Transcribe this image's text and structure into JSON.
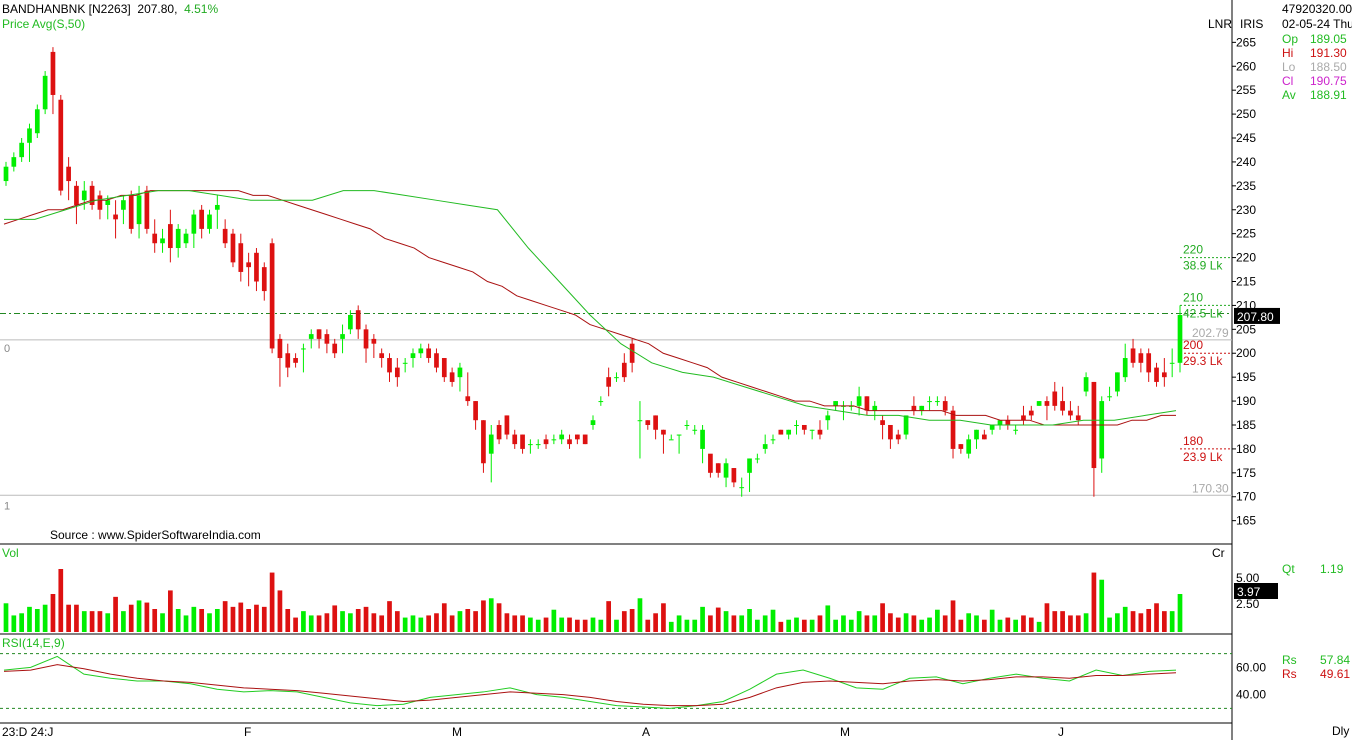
{
  "header": {
    "symbol": "BANDHANBNK [N2263]",
    "last": "207.80,",
    "change": "4.51%",
    "overlay": "Price  Avg(S,50)",
    "lnr": "LNR",
    "iris": "IRIS"
  },
  "info_panel": {
    "volume": "47920320.00",
    "date": "02-05-24  Thu",
    "open_label": "Op",
    "open": "189.05",
    "high_label": "Hi",
    "high": "191.30",
    "low_label": "Lo",
    "low": "188.50",
    "close_label": "Cl",
    "close": "190.75",
    "avg_label": "Av",
    "avg": "188.91"
  },
  "source": "Source : www.SpiderSoftwareIndia.com",
  "price_marker": "207.80",
  "left_markers": {
    "top": "0",
    "bottom": "1"
  },
  "annotations": {
    "level_202": "202.79",
    "level_170": "170.30",
    "t220": "220",
    "v220": "38.9 Lk",
    "t210": "210",
    "v210": "42.5 Lk",
    "t200": "200",
    "v200": "29.3 Lk",
    "t180": "180",
    "v180": "23.9 Lk"
  },
  "volume_panel": {
    "title": "Vol",
    "unit": "Cr",
    "qt_label": "Qt",
    "qt": "1.19",
    "marker": "3.97",
    "ticks": [
      "5.00",
      "2.50"
    ]
  },
  "rsi_panel": {
    "title": "RSI(14,E,9)",
    "rs1_label": "Rs",
    "rs1": "57.84",
    "rs2_label": "Rs",
    "rs2": "49.61",
    "ticks": [
      "60.00",
      "40.00"
    ]
  },
  "x_axis": {
    "labels": [
      "23:D 24:J",
      "F",
      "M",
      "A",
      "M",
      "J"
    ],
    "period": "Dly"
  },
  "colors": {
    "up": "#00ee00",
    "down": "#dd1111",
    "sma": "#aa1111",
    "vol_sma": "#22bb22",
    "rsi": "#22cc22",
    "rsi_signal": "#aa1111"
  },
  "chart_data": {
    "type": "candlestick",
    "y_range": [
      162,
      268
    ],
    "y_ticks": [
      165,
      170,
      175,
      180,
      185,
      190,
      195,
      200,
      205,
      210,
      215,
      220,
      225,
      230,
      235,
      240,
      245,
      250,
      255,
      260,
      265
    ],
    "candles": [
      [
        236,
        240,
        235,
        239
      ],
      [
        239,
        242,
        238,
        241
      ],
      [
        241,
        245,
        240,
        244
      ],
      [
        244,
        248,
        240,
        247
      ],
      [
        246,
        252,
        245,
        251
      ],
      [
        251,
        259,
        250,
        258
      ],
      [
        263,
        264,
        250,
        254
      ],
      [
        253,
        254,
        233,
        234
      ],
      [
        239,
        241,
        232,
        236
      ],
      [
        235,
        236,
        227,
        231
      ],
      [
        232,
        236,
        230,
        234
      ],
      [
        235,
        236,
        230,
        231
      ],
      [
        233,
        234,
        228,
        230
      ],
      [
        231,
        233,
        228,
        232
      ],
      [
        229,
        232,
        224,
        228
      ],
      [
        230,
        233,
        227,
        232
      ],
      [
        233,
        234,
        225,
        226
      ],
      [
        227,
        235,
        224,
        233
      ],
      [
        234,
        235,
        225,
        226
      ],
      [
        225,
        228,
        221,
        223
      ],
      [
        223,
        226,
        221,
        224
      ],
      [
        227,
        230,
        219,
        222
      ],
      [
        222,
        227,
        220,
        226
      ],
      [
        223,
        226,
        222,
        225
      ],
      [
        225,
        230,
        222,
        229
      ],
      [
        230,
        231,
        224,
        226
      ],
      [
        226,
        230,
        225,
        229
      ],
      [
        230,
        233,
        226,
        231
      ],
      [
        226,
        228,
        222,
        223
      ],
      [
        225,
        226,
        218,
        219
      ],
      [
        223,
        225,
        215,
        217
      ],
      [
        219,
        221,
        214,
        218
      ],
      [
        221,
        222,
        213,
        215
      ],
      [
        218,
        219,
        211,
        213
      ],
      [
        223,
        224,
        200,
        201
      ],
      [
        203,
        204,
        193,
        199
      ],
      [
        200,
        202,
        195,
        197
      ],
      [
        199,
        200,
        197,
        198
      ],
      [
        201,
        202,
        196,
        201
      ],
      [
        203,
        205,
        201,
        204
      ],
      [
        205,
        205,
        201,
        203
      ],
      [
        204,
        205,
        200,
        202
      ],
      [
        202,
        203,
        199,
        200
      ],
      [
        203,
        206,
        200,
        204
      ],
      [
        205,
        209,
        204,
        208
      ],
      [
        209,
        210,
        203,
        205
      ],
      [
        205,
        206,
        198,
        201
      ],
      [
        203,
        204,
        199,
        202
      ],
      [
        200,
        201,
        197,
        199
      ],
      [
        199,
        200,
        194,
        196
      ],
      [
        197,
        199,
        193,
        195
      ],
      [
        198,
        199,
        196,
        198
      ],
      [
        199,
        201,
        197,
        200
      ],
      [
        200,
        202,
        199,
        201
      ],
      [
        201,
        202,
        198,
        199
      ],
      [
        200,
        201,
        196,
        197
      ],
      [
        199,
        199,
        194,
        195
      ],
      [
        196,
        197,
        193,
        194
      ],
      [
        195,
        198,
        192,
        197
      ],
      [
        191,
        196,
        189,
        190
      ],
      [
        190,
        190,
        184,
        186
      ],
      [
        186,
        186,
        175,
        177
      ],
      [
        179,
        185,
        173,
        183
      ],
      [
        185,
        186,
        181,
        182
      ],
      [
        187,
        187,
        182,
        183
      ],
      [
        183,
        184,
        180,
        181
      ],
      [
        183,
        183,
        179,
        180
      ],
      [
        181,
        182,
        179,
        181
      ],
      [
        181,
        182,
        180,
        181
      ],
      [
        182,
        183,
        180,
        181
      ],
      [
        182,
        183,
        181,
        182
      ],
      [
        182,
        184,
        181,
        183
      ],
      [
        182,
        183,
        180,
        181
      ],
      [
        183,
        183,
        181,
        182
      ],
      [
        183,
        183,
        181,
        181
      ],
      [
        185,
        187,
        184,
        186
      ],
      [
        190,
        191,
        189,
        190
      ],
      [
        195,
        197,
        191,
        193
      ],
      [
        195,
        196,
        194,
        195
      ],
      [
        198,
        200,
        194,
        195
      ],
      [
        202,
        203,
        196,
        198
      ],
      [
        186,
        190,
        178,
        186
      ],
      [
        186,
        186,
        184,
        185
      ],
      [
        187,
        187,
        182,
        184
      ],
      [
        184,
        184,
        179,
        183
      ],
      [
        182,
        183,
        182,
        182
      ],
      [
        183,
        183,
        179,
        183
      ],
      [
        185,
        186,
        184,
        185
      ],
      [
        184,
        185,
        183,
        184
      ],
      [
        180,
        185,
        177,
        184
      ],
      [
        179,
        178,
        174,
        175
      ],
      [
        177,
        177,
        174,
        175
      ],
      [
        174,
        178,
        172,
        177
      ],
      [
        176,
        176,
        172,
        173
      ],
      [
        172,
        174,
        170,
        172
      ],
      [
        175,
        178,
        171,
        178
      ],
      [
        178,
        179,
        177,
        178
      ],
      [
        180,
        183,
        179,
        181
      ],
      [
        182,
        183,
        181,
        182
      ],
      [
        184,
        184,
        183,
        183
      ],
      [
        183,
        184,
        182,
        184
      ],
      [
        185,
        186,
        183,
        185
      ],
      [
        185,
        185,
        183,
        184
      ],
      [
        184,
        184,
        182,
        184
      ],
      [
        184,
        186,
        182,
        183
      ],
      [
        186,
        188,
        184,
        187
      ],
      [
        189,
        190,
        188,
        190
      ],
      [
        189,
        190,
        186,
        189
      ],
      [
        189,
        190,
        188,
        189
      ],
      [
        189,
        193,
        187,
        191
      ],
      [
        191,
        191,
        187,
        188
      ],
      [
        188,
        190,
        186,
        189
      ],
      [
        186,
        187,
        182,
        185
      ],
      [
        185,
        185,
        180,
        182
      ],
      [
        183,
        184,
        181,
        182
      ],
      [
        183,
        187,
        182,
        187
      ],
      [
        189,
        191,
        187,
        188
      ],
      [
        188,
        189,
        187,
        189
      ],
      [
        190,
        191,
        188,
        190
      ],
      [
        190,
        191,
        189,
        190
      ],
      [
        190,
        191,
        187,
        188
      ],
      [
        188,
        189,
        178,
        180
      ],
      [
        181,
        181,
        179,
        180
      ],
      [
        179,
        183,
        178,
        182
      ],
      [
        182,
        184,
        180,
        184
      ],
      [
        183,
        184,
        182,
        182
      ],
      [
        184,
        185,
        183,
        185
      ],
      [
        185,
        186,
        184,
        186
      ],
      [
        186,
        187,
        184,
        185
      ],
      [
        184,
        185,
        183,
        184
      ],
      [
        187,
        189,
        185,
        186
      ],
      [
        188,
        189,
        186,
        187
      ],
      [
        189,
        190,
        189,
        190
      ],
      [
        190,
        191,
        186,
        189
      ],
      [
        192,
        194,
        188,
        189
      ],
      [
        190,
        193,
        187,
        188
      ],
      [
        188,
        190,
        186,
        187
      ],
      [
        187,
        189,
        185,
        186
      ],
      [
        192,
        196,
        191,
        195
      ],
      [
        194,
        194,
        170,
        176
      ],
      [
        178,
        191,
        175,
        190
      ],
      [
        191,
        193,
        190,
        191
      ],
      [
        192,
        196,
        191,
        196
      ],
      [
        195,
        202,
        194,
        199
      ],
      [
        201,
        203,
        197,
        198
      ],
      [
        200,
        201,
        196,
        198
      ],
      [
        200,
        201,
        194,
        196
      ],
      [
        197,
        198,
        193,
        194
      ],
      [
        196,
        199,
        193,
        195
      ],
      [
        198,
        201,
        195,
        198
      ],
      [
        198,
        210,
        196,
        208
      ]
    ],
    "sma50": [
      227,
      228,
      229,
      230,
      230,
      231,
      232,
      232,
      233,
      233,
      234,
      234,
      234,
      234,
      234,
      234,
      234,
      233,
      233,
      232,
      231,
      230,
      229,
      228,
      227,
      226,
      224,
      223,
      222,
      220,
      219,
      218,
      217,
      215,
      214,
      212,
      211,
      210,
      209,
      208,
      206,
      205,
      204,
      203,
      202,
      200,
      199,
      198,
      197,
      195,
      194,
      193,
      192,
      191,
      190,
      190,
      189,
      189,
      189,
      188,
      188,
      188,
      188,
      188,
      188,
      187,
      187,
      187,
      186,
      186,
      186,
      185,
      185,
      185,
      185,
      185,
      185,
      186,
      186,
      187,
      187
    ],
    "volume_sma_visible": true,
    "rsi": [
      [
        0,
        57.84
      ],
      [
        1,
        49.61
      ]
    ]
  }
}
